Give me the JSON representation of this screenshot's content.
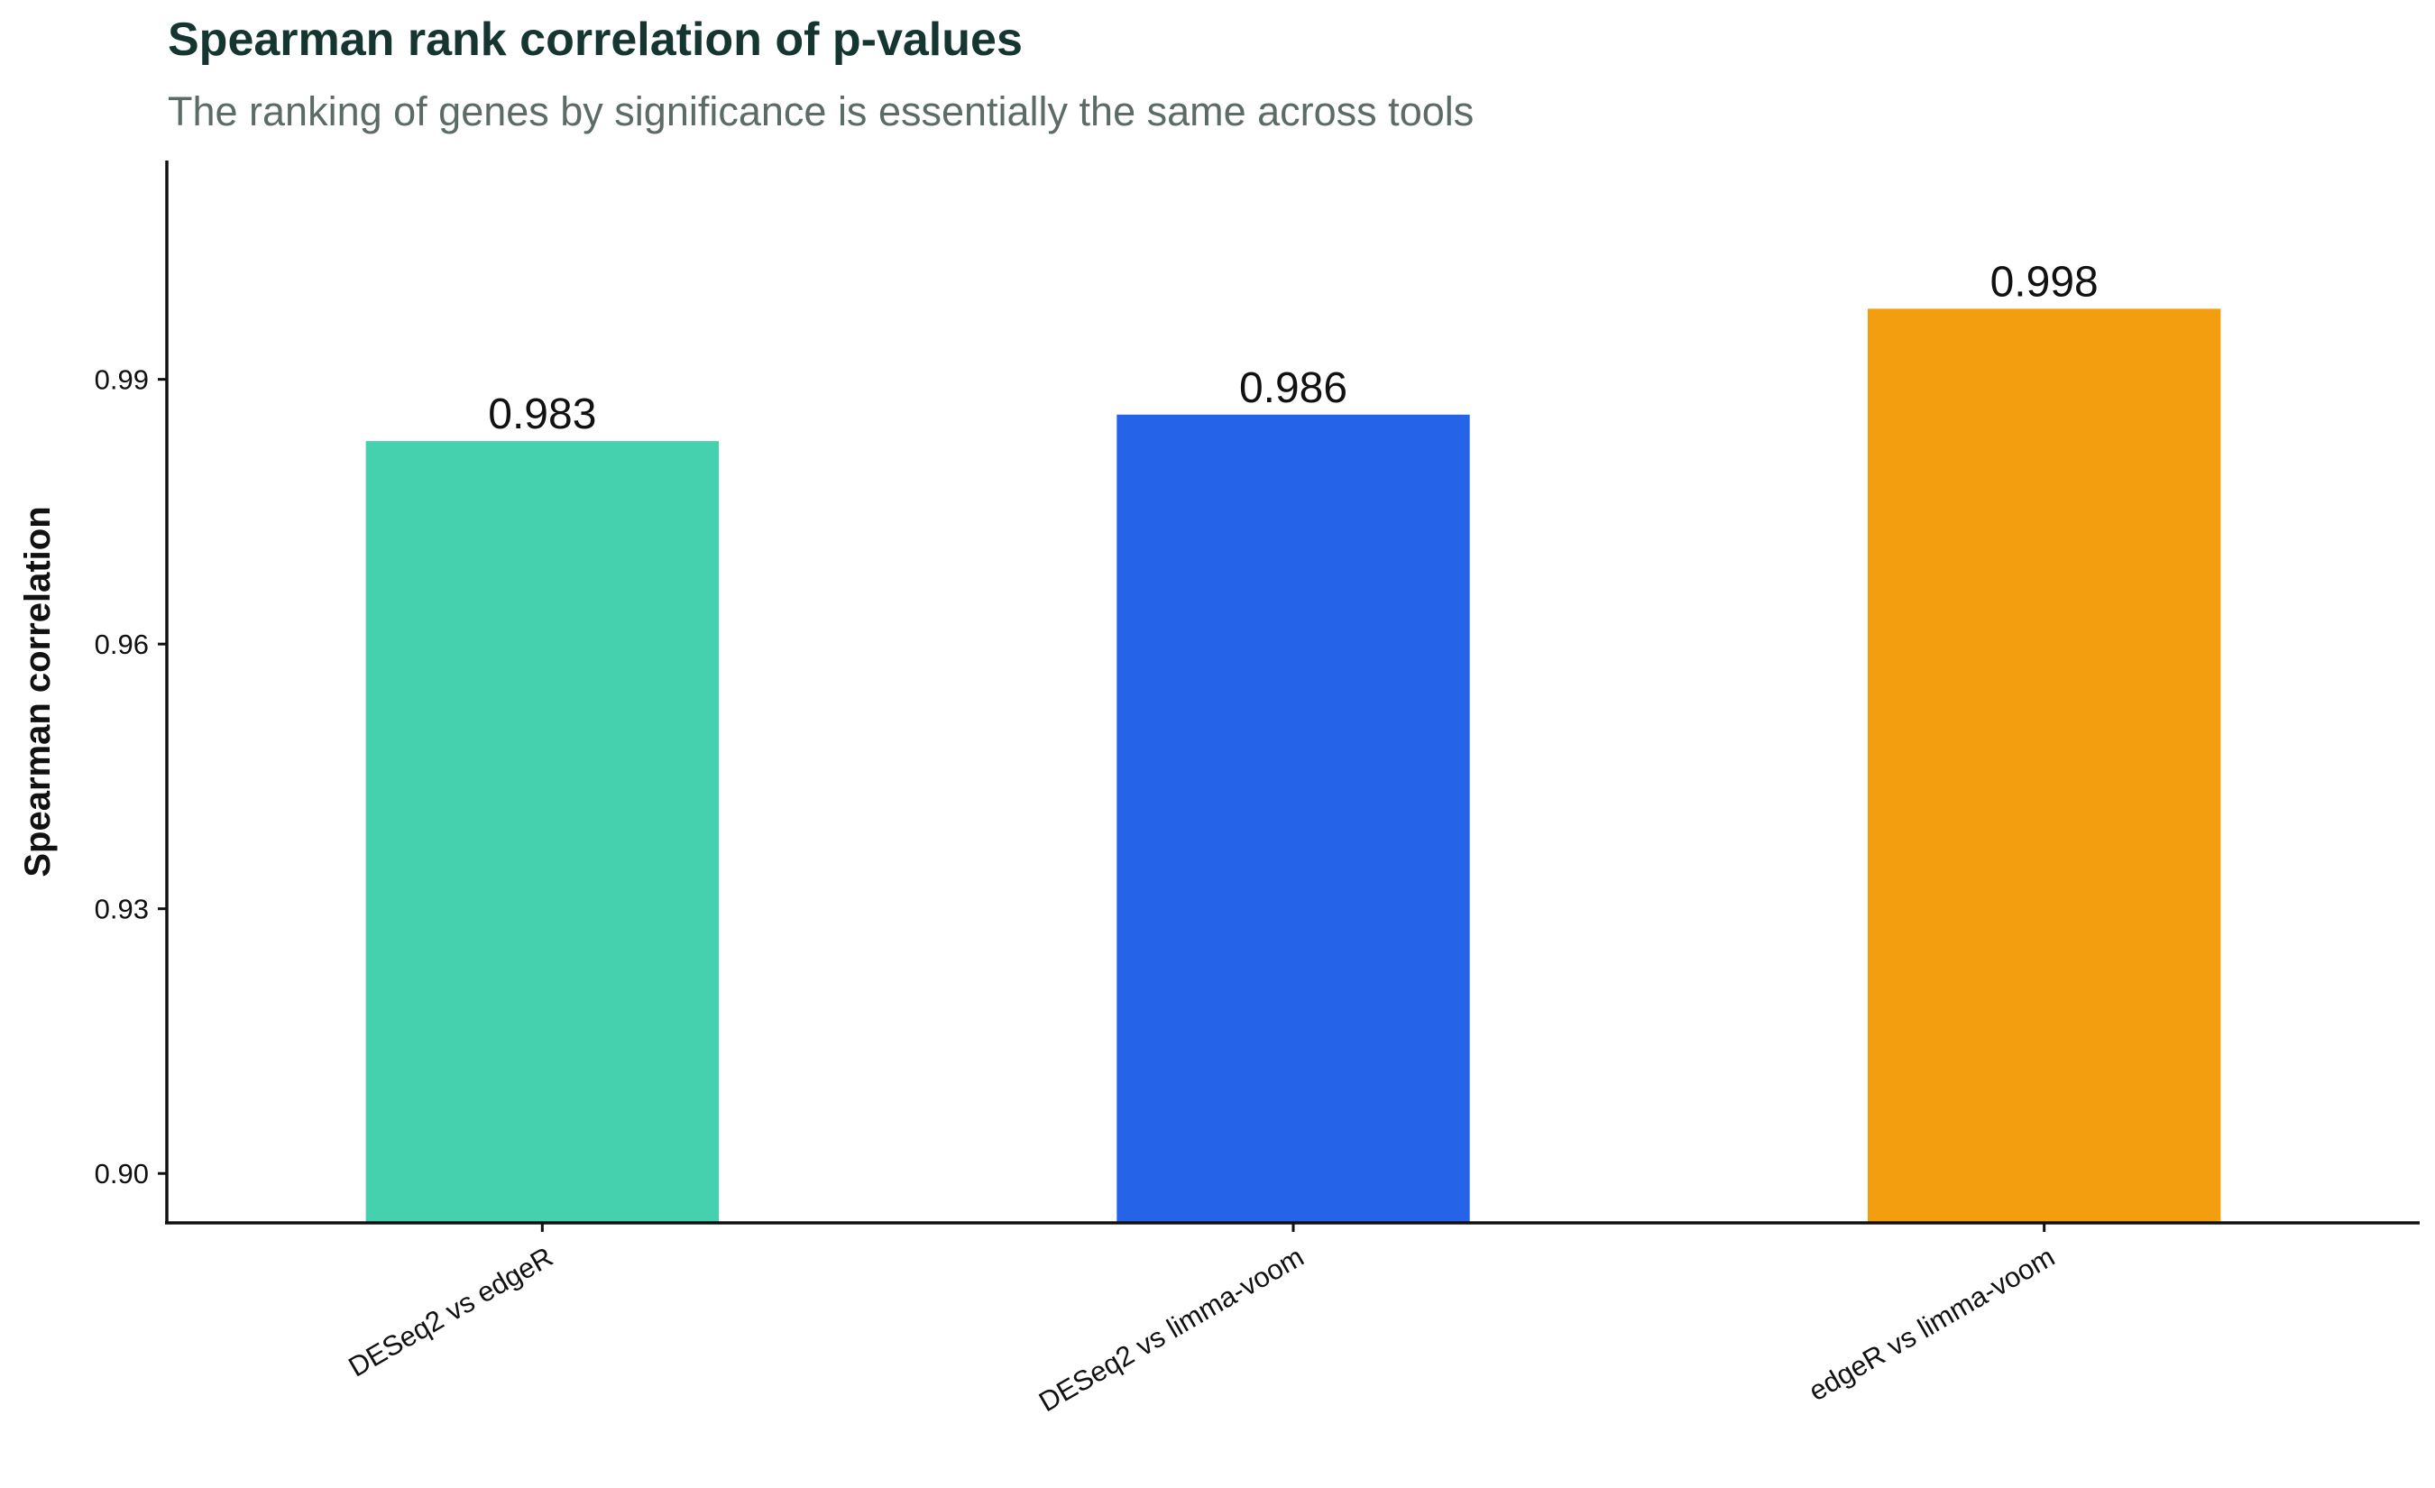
{
  "chart_data": {
    "type": "bar",
    "title": "Spearman rank correlation of p-values",
    "subtitle": "The ranking of genes by significance is essentially the same across tools",
    "xlabel": "",
    "ylabel": "Spearman correlation",
    "categories": [
      "DESeq2 vs edgeR",
      "DESeq2 vs limma-voom",
      "edgeR vs limma-voom"
    ],
    "values": [
      0.983,
      0.986,
      0.998
    ],
    "value_labels": [
      "0.983",
      "0.986",
      "0.998"
    ],
    "colors": [
      "#45d1ae",
      "#2563e8",
      "#f39e0e"
    ],
    "ylim": [
      0.8944,
      1.0148
    ],
    "yticks": [
      0.9,
      0.93,
      0.96,
      0.99
    ],
    "ytick_labels": [
      "0.90",
      "0.93",
      "0.96",
      "0.99"
    ],
    "grid": false,
    "legend": "none"
  }
}
